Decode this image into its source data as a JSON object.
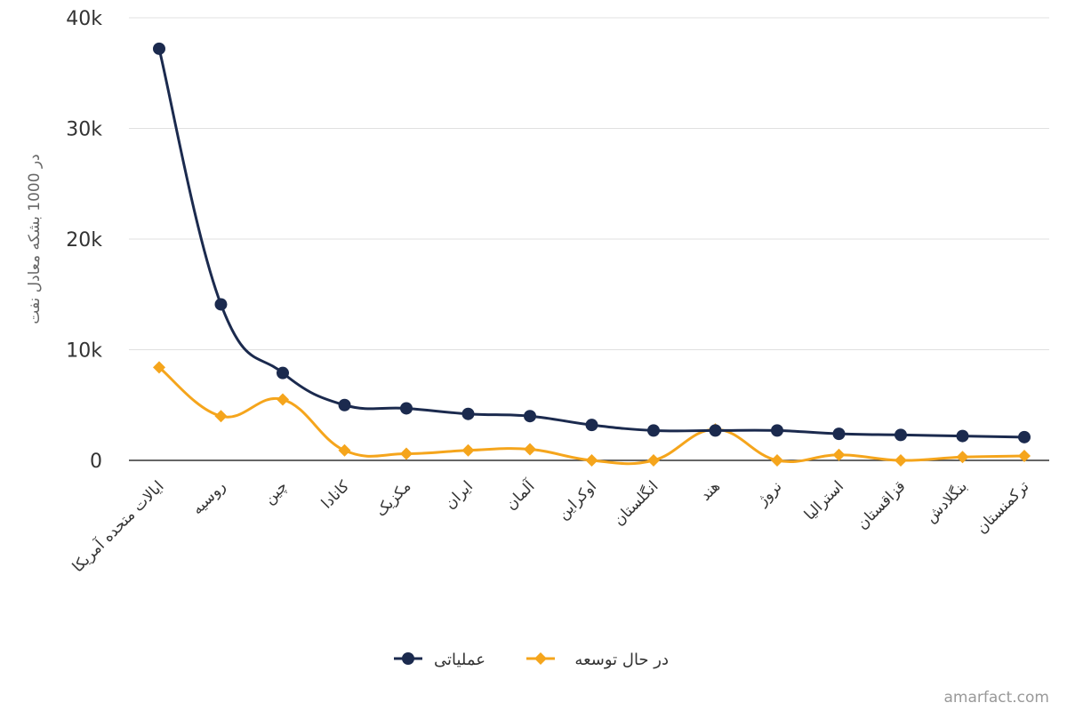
{
  "chart_data": {
    "type": "line",
    "title": "",
    "xlabel": "",
    "ylabel": "در 1000 بشکه معادل نفت",
    "ylim": [
      0,
      40000
    ],
    "yticks": [
      {
        "value": 0,
        "label": "0"
      },
      {
        "value": 10000,
        "label": "10k"
      },
      {
        "value": 20000,
        "label": "20k"
      },
      {
        "value": 30000,
        "label": "30k"
      },
      {
        "value": 40000,
        "label": "40k"
      }
    ],
    "grid": true,
    "legend_position": "bottom-center",
    "categories": [
      "ایالات متحده آمریکا",
      "روسیه",
      "چین",
      "کانادا",
      "مکزیک",
      "ایران",
      "آلمان",
      "اوکراین",
      "انگلستان",
      "هند",
      "نروژ",
      "استرالیا",
      "قزاقستان",
      "بنگلادش",
      "ترکمنستان"
    ],
    "series": [
      {
        "name": "عملیاتی",
        "color": "#1b2a4e",
        "marker": "circle",
        "values": [
          37200,
          14100,
          7900,
          5000,
          4700,
          4200,
          4000,
          3200,
          2700,
          2700,
          2700,
          2400,
          2300,
          2200,
          2100
        ]
      },
      {
        "name": "در حال توسعه",
        "color": "#f5a51c",
        "marker": "diamond",
        "values": [
          8400,
          4000,
          5500,
          900,
          600,
          900,
          1000,
          0,
          0,
          2800,
          0,
          500,
          0,
          300,
          400
        ]
      }
    ]
  },
  "credit": "amarfact.com"
}
